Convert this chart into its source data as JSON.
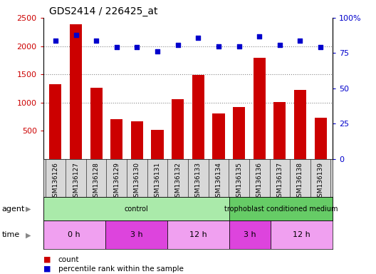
{
  "title": "GDS2414 / 226425_at",
  "samples": [
    "GSM136126",
    "GSM136127",
    "GSM136128",
    "GSM136129",
    "GSM136130",
    "GSM136131",
    "GSM136132",
    "GSM136133",
    "GSM136134",
    "GSM136135",
    "GSM136136",
    "GSM136137",
    "GSM136138",
    "GSM136139"
  ],
  "counts": [
    1320,
    2380,
    1260,
    710,
    670,
    510,
    1060,
    1490,
    810,
    920,
    1790,
    1010,
    1220,
    730
  ],
  "percentile_ranks": [
    84,
    88,
    84,
    79,
    79,
    76,
    81,
    86,
    80,
    80,
    87,
    81,
    84,
    79
  ],
  "bar_color": "#cc0000",
  "scatter_color": "#0000cc",
  "ylim_left": [
    0,
    2500
  ],
  "ylim_right": [
    0,
    100
  ],
  "yticks_left": [
    500,
    1000,
    1500,
    2000,
    2500
  ],
  "yticks_right": [
    0,
    25,
    50,
    75,
    100
  ],
  "yticklabels_right": [
    "0",
    "25",
    "50",
    "75",
    "100%"
  ],
  "grid_lines": [
    1000,
    1500,
    2000
  ],
  "agent_groups": [
    {
      "label": "control",
      "start": 0,
      "end": 9,
      "color": "#aaeaaa"
    },
    {
      "label": "trophoblast conditioned medium",
      "start": 9,
      "end": 14,
      "color": "#66cc66"
    }
  ],
  "time_groups": [
    {
      "label": "0 h",
      "start": 0,
      "end": 3,
      "color": "#f0a0f0"
    },
    {
      "label": "3 h",
      "start": 3,
      "end": 6,
      "color": "#dd44dd"
    },
    {
      "label": "12 h",
      "start": 6,
      "end": 9,
      "color": "#f0a0f0"
    },
    {
      "label": "3 h",
      "start": 9,
      "end": 11,
      "color": "#dd44dd"
    },
    {
      "label": "12 h",
      "start": 11,
      "end": 14,
      "color": "#f0a0f0"
    }
  ],
  "bar_color_hex": "#cc0000",
  "scatter_color_hex": "#0000cc",
  "grid_color": "#888888",
  "xlabel_color": "#cc0000",
  "yright_color": "#0000cc",
  "tick_label_bg": "#d8d8d8",
  "plot_bg": "#ffffff"
}
